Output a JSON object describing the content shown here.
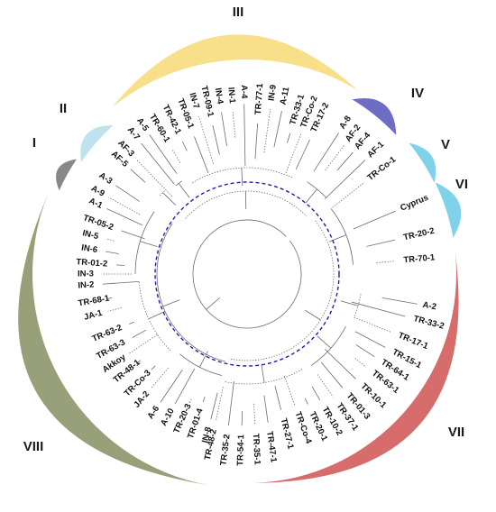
{
  "tree": {
    "groups": [
      {
        "label": "I",
        "color": "#888888"
      },
      {
        "label": "II",
        "color": "#bfe3ee"
      },
      {
        "label": "III",
        "color": "#f8df8a"
      },
      {
        "label": "IV",
        "color": "#6e6dc4"
      },
      {
        "label": "V",
        "color": "#7fd2ea"
      },
      {
        "label": "VI",
        "color": "#7fd2ea"
      },
      {
        "label": "VII",
        "color": "#d66c6c"
      },
      {
        "label": "VIII",
        "color": "#98a07a"
      }
    ],
    "leaves": [
      "TR-Co-1",
      "Cyprus",
      "TR-20-2",
      "TR-70-1",
      "A-2",
      "TR-33-2",
      "TR-17-1",
      "TR-15-1",
      "TR-64-1",
      "TR-63-1",
      "TR-10-1",
      "TR-01-3",
      "TR-37-1",
      "TR-10-2",
      "TR-20-1",
      "TR-Co-4",
      "TR-27-1",
      "TR-47-1",
      "TR-35-1",
      "TR-54-1",
      "TR-35-2",
      "TR-48-2",
      "IN-8",
      "TR-01-4",
      "TR-20-3",
      "A-10",
      "A-6",
      "JA-2",
      "TR-Co-3",
      "TR-48-1",
      "Akkoy",
      "TR-63-3",
      "TR-63-2",
      "JA-1",
      "TR-68-1",
      "IN-2",
      "IN-3",
      "TR-01-2",
      "IN-6",
      "IN-5",
      "TR-05-2",
      "A-1",
      "A-9",
      "A-3",
      "AF-5",
      "AF-3",
      "A-7",
      "A-5",
      "TR-60-1",
      "TR-42-1",
      "TR-05-1",
      "IN-7",
      "TR-09-1",
      "IN-4",
      "IN-1",
      "A-4",
      "TR-77-1",
      "IN-9",
      "A-11",
      "TR-33-1",
      "TR-Co-2",
      "TR-17-2",
      "A-8",
      "AF-2",
      "AF-4",
      "AF-1"
    ]
  }
}
